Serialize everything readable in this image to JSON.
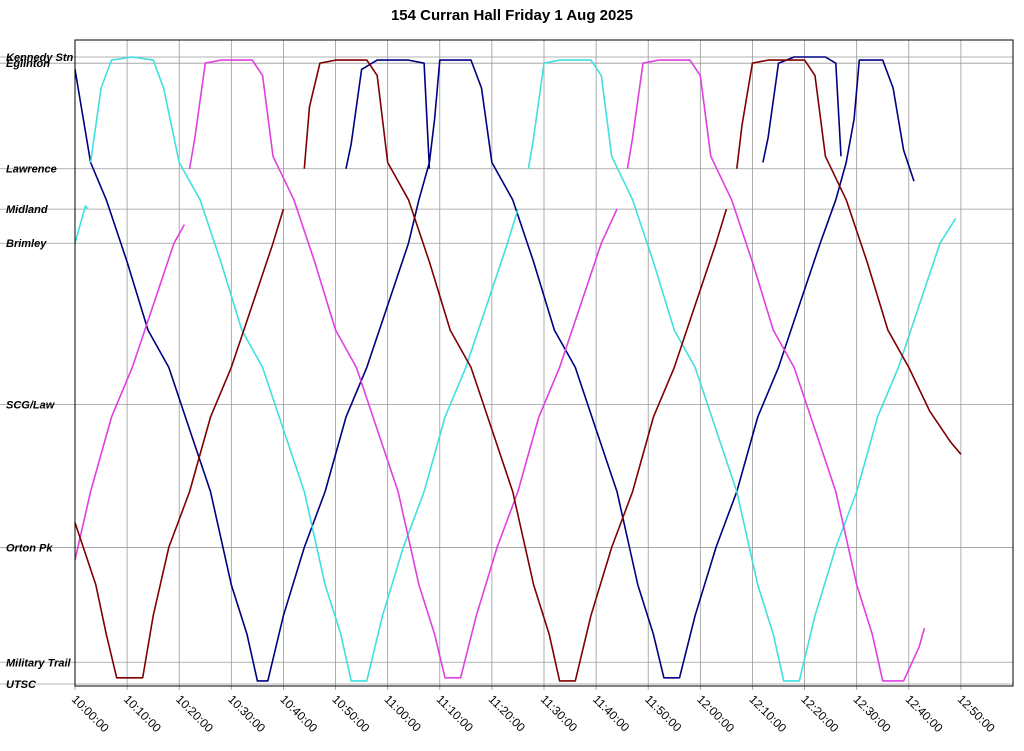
{
  "chart_data": {
    "type": "line",
    "title": "154 Curran Hall Friday 1 Aug 2025",
    "xlabel": "",
    "ylabel": "",
    "x_unit": "time",
    "xlim": [
      "10:00:00",
      "13:00:00"
    ],
    "x_ticks": [
      "10:00:00",
      "10:10:00",
      "10:20:00",
      "10:30:00",
      "10:40:00",
      "10:50:00",
      "11:00:00",
      "11:10:00",
      "11:20:00",
      "11:30:00",
      "11:40:00",
      "11:50:00",
      "12:00:00",
      "12:10:00",
      "12:20:00",
      "12:30:00",
      "12:40:00",
      "12:50:00"
    ],
    "y_stops": [
      {
        "name": "Kennedy Stn",
        "pos": 0.0
      },
      {
        "name": "Eglinton",
        "pos": 0.1
      },
      {
        "name": "Lawrence",
        "pos": 1.8
      },
      {
        "name": "Midland",
        "pos": 2.45
      },
      {
        "name": "Brimley",
        "pos": 3.0
      },
      {
        "name": "SCG/Law",
        "pos": 5.6
      },
      {
        "name": "Orton Pk",
        "pos": 7.9
      },
      {
        "name": "Military Trail",
        "pos": 9.75
      },
      {
        "name": "UTSC",
        "pos": 10.1
      }
    ],
    "ylim": [
      0,
      10.1
    ],
    "grid": true,
    "legend": "none",
    "series": [
      {
        "color": "#000080",
        "segments": [
          [
            [
              "10:00:00",
              0.2
            ],
            [
              "10:03:00",
              1.7
            ],
            [
              "10:06:00",
              2.3
            ],
            [
              "10:10:00",
              3.3
            ],
            [
              "10:14:00",
              4.4
            ],
            [
              "10:18:00",
              5.0
            ],
            [
              "10:22:00",
              6.0
            ],
            [
              "10:26:00",
              7.0
            ],
            [
              "10:30:00",
              8.5
            ],
            [
              "10:33:00",
              9.3
            ],
            [
              "10:35:00",
              10.05
            ],
            [
              "10:37:00",
              10.05
            ],
            [
              "10:40:00",
              9.0
            ],
            [
              "10:44:00",
              7.9
            ],
            [
              "10:48:00",
              7.0
            ],
            [
              "10:52:00",
              5.8
            ],
            [
              "10:56:00",
              5.0
            ],
            [
              "11:00:00",
              4.0
            ],
            [
              "11:04:00",
              3.0
            ],
            [
              "11:06:00",
              2.3
            ],
            [
              "11:08:00",
              1.7
            ],
            [
              "11:09:00",
              1.0
            ],
            [
              "11:10:00",
              0.05
            ],
            [
              "11:16:00",
              0.05
            ],
            [
              "11:18:00",
              0.5
            ],
            [
              "11:20:00",
              1.7
            ],
            [
              "11:24:00",
              2.3
            ],
            [
              "11:28:00",
              3.3
            ],
            [
              "11:32:00",
              4.4
            ],
            [
              "11:36:00",
              5.0
            ],
            [
              "11:40:00",
              6.0
            ],
            [
              "11:44:00",
              7.0
            ],
            [
              "11:48:00",
              8.5
            ],
            [
              "11:51:00",
              9.3
            ],
            [
              "11:53:00",
              10.0
            ],
            [
              "11:56:00",
              10.0
            ],
            [
              "11:59:00",
              9.0
            ],
            [
              "12:03:00",
              7.9
            ],
            [
              "12:07:00",
              7.0
            ],
            [
              "12:11:00",
              5.8
            ],
            [
              "12:15:00",
              5.0
            ],
            [
              "12:19:00",
              4.0
            ],
            [
              "12:23:00",
              3.0
            ],
            [
              "12:26:00",
              2.3
            ],
            [
              "12:28:00",
              1.7
            ],
            [
              "12:29:30",
              1.0
            ],
            [
              "12:30:30",
              0.05
            ],
            [
              "12:35:00",
              0.05
            ],
            [
              "12:37:00",
              0.5
            ],
            [
              "12:39:00",
              1.5
            ],
            [
              "12:41:00",
              2.0
            ]
          ],
          [
            [
              "10:52:00",
              1.8
            ],
            [
              "10:53:00",
              1.4
            ],
            [
              "10:55:00",
              0.2
            ],
            [
              "10:58:00",
              0.05
            ],
            [
              "11:04:00",
              0.05
            ],
            [
              "11:07:00",
              0.1
            ],
            [
              "11:08:00",
              1.8
            ]
          ],
          [
            [
              "12:12:00",
              1.7
            ],
            [
              "12:13:00",
              1.3
            ],
            [
              "12:15:00",
              0.1
            ],
            [
              "12:18:00",
              0.0
            ],
            [
              "12:24:00",
              0.0
            ],
            [
              "12:26:00",
              0.1
            ],
            [
              "12:27:00",
              1.6
            ]
          ]
        ]
      },
      {
        "color": "#40e0e0",
        "segments": [
          [
            [
              "10:00:00",
              3.0
            ],
            [
              "10:02:00",
              2.4
            ],
            [
              "10:02:30",
              2.45
            ]
          ],
          [
            [
              "10:03:00",
              1.7
            ],
            [
              "10:05:00",
              0.5
            ],
            [
              "10:07:00",
              0.05
            ],
            [
              "10:11:00",
              0.0
            ],
            [
              "10:15:00",
              0.05
            ],
            [
              "10:17:00",
              0.5
            ],
            [
              "10:20:00",
              1.7
            ],
            [
              "10:24:00",
              2.3
            ],
            [
              "10:28:00",
              3.3
            ],
            [
              "10:32:00",
              4.4
            ],
            [
              "10:36:00",
              5.0
            ],
            [
              "10:40:00",
              6.0
            ],
            [
              "10:44:00",
              7.0
            ],
            [
              "10:48:00",
              8.5
            ],
            [
              "10:51:00",
              9.3
            ],
            [
              "10:53:00",
              10.05
            ],
            [
              "10:56:00",
              10.05
            ],
            [
              "10:59:00",
              9.0
            ],
            [
              "11:03:00",
              7.9
            ],
            [
              "11:07:00",
              7.0
            ],
            [
              "11:11:00",
              5.8
            ],
            [
              "11:15:00",
              5.0
            ],
            [
              "11:19:00",
              4.0
            ],
            [
              "11:23:00",
              3.0
            ],
            [
              "11:25:00",
              2.45
            ]
          ],
          [
            [
              "11:27:00",
              1.8
            ],
            [
              "11:28:00",
              1.3
            ],
            [
              "11:30:00",
              0.1
            ],
            [
              "11:33:00",
              0.05
            ],
            [
              "11:39:00",
              0.05
            ],
            [
              "11:41:00",
              0.3
            ],
            [
              "11:43:00",
              1.6
            ],
            [
              "11:47:00",
              2.3
            ],
            [
              "11:51:00",
              3.3
            ],
            [
              "11:55:00",
              4.4
            ],
            [
              "11:59:00",
              5.0
            ],
            [
              "12:03:00",
              6.0
            ],
            [
              "12:07:00",
              7.0
            ],
            [
              "12:11:00",
              8.5
            ],
            [
              "12:14:00",
              9.3
            ],
            [
              "12:16:00",
              10.05
            ],
            [
              "12:19:00",
              10.05
            ],
            [
              "12:22:00",
              9.0
            ],
            [
              "12:26:00",
              7.9
            ],
            [
              "12:30:00",
              7.0
            ],
            [
              "12:34:00",
              5.8
            ],
            [
              "12:38:00",
              5.0
            ],
            [
              "12:42:00",
              4.0
            ],
            [
              "12:46:00",
              3.0
            ],
            [
              "12:49:00",
              2.6
            ]
          ]
        ]
      },
      {
        "color": "#e040e0",
        "segments": [
          [
            [
              "10:00:00",
              8.1
            ],
            [
              "10:03:00",
              7.0
            ],
            [
              "10:07:00",
              5.8
            ],
            [
              "10:11:00",
              5.0
            ],
            [
              "10:15:00",
              4.0
            ],
            [
              "10:19:00",
              3.0
            ],
            [
              "10:21:00",
              2.7
            ]
          ],
          [
            [
              "10:22:00",
              1.8
            ],
            [
              "10:23:00",
              1.3
            ],
            [
              "10:25:00",
              0.1
            ],
            [
              "10:28:00",
              0.05
            ],
            [
              "10:34:00",
              0.05
            ],
            [
              "10:36:00",
              0.3
            ],
            [
              "10:38:00",
              1.6
            ],
            [
              "10:42:00",
              2.3
            ],
            [
              "10:46:00",
              3.3
            ],
            [
              "10:50:00",
              4.4
            ],
            [
              "10:54:00",
              5.0
            ],
            [
              "10:58:00",
              6.0
            ],
            [
              "11:02:00",
              7.0
            ],
            [
              "11:06:00",
              8.5
            ],
            [
              "11:09:00",
              9.3
            ],
            [
              "11:11:00",
              10.0
            ],
            [
              "11:14:00",
              10.0
            ],
            [
              "11:17:00",
              9.0
            ],
            [
              "11:21:00",
              7.9
            ],
            [
              "11:25:00",
              7.0
            ],
            [
              "11:29:00",
              5.8
            ],
            [
              "11:33:00",
              5.0
            ],
            [
              "11:37:00",
              4.0
            ],
            [
              "11:41:00",
              3.0
            ],
            [
              "11:44:00",
              2.45
            ]
          ],
          [
            [
              "11:46:00",
              1.8
            ],
            [
              "11:47:00",
              1.3
            ],
            [
              "11:49:00",
              0.1
            ],
            [
              "11:52:00",
              0.05
            ],
            [
              "11:58:00",
              0.05
            ],
            [
              "12:00:00",
              0.3
            ],
            [
              "12:02:00",
              1.6
            ],
            [
              "12:06:00",
              2.3
            ],
            [
              "12:10:00",
              3.3
            ],
            [
              "12:14:00",
              4.4
            ],
            [
              "12:18:00",
              5.0
            ],
            [
              "12:22:00",
              6.0
            ],
            [
              "12:26:00",
              7.0
            ],
            [
              "12:30:00",
              8.5
            ],
            [
              "12:33:00",
              9.3
            ],
            [
              "12:35:00",
              10.05
            ],
            [
              "12:39:00",
              10.05
            ],
            [
              "12:42:00",
              9.5
            ],
            [
              "12:43:00",
              9.2
            ]
          ]
        ]
      },
      {
        "color": "#800000",
        "segments": [
          [
            [
              "10:00:00",
              7.5
            ],
            [
              "10:02:00",
              8.0
            ],
            [
              "10:04:00",
              8.5
            ],
            [
              "10:06:00",
              9.3
            ],
            [
              "10:08:00",
              10.0
            ],
            [
              "10:13:00",
              10.0
            ],
            [
              "10:15:00",
              9.0
            ],
            [
              "10:18:00",
              7.9
            ],
            [
              "10:22:00",
              7.0
            ],
            [
              "10:26:00",
              5.8
            ],
            [
              "10:30:00",
              5.0
            ],
            [
              "10:34:00",
              4.0
            ],
            [
              "10:38:00",
              3.0
            ],
            [
              "10:40:00",
              2.45
            ]
          ],
          [
            [
              "10:44:00",
              1.8
            ],
            [
              "10:45:00",
              0.8
            ],
            [
              "10:47:00",
              0.1
            ],
            [
              "10:50:00",
              0.05
            ],
            [
              "10:56:00",
              0.05
            ],
            [
              "10:58:00",
              0.3
            ],
            [
              "11:00:00",
              1.7
            ],
            [
              "11:04:00",
              2.3
            ],
            [
              "11:08:00",
              3.3
            ],
            [
              "11:12:00",
              4.4
            ],
            [
              "11:16:00",
              5.0
            ],
            [
              "11:20:00",
              6.0
            ],
            [
              "11:24:00",
              7.0
            ],
            [
              "11:28:00",
              8.5
            ],
            [
              "11:31:00",
              9.3
            ],
            [
              "11:33:00",
              10.05
            ],
            [
              "11:36:00",
              10.05
            ],
            [
              "11:39:00",
              9.0
            ],
            [
              "11:43:00",
              7.9
            ],
            [
              "11:47:00",
              7.0
            ],
            [
              "11:51:00",
              5.8
            ],
            [
              "11:55:00",
              5.0
            ],
            [
              "11:59:00",
              4.0
            ],
            [
              "12:03:00",
              3.0
            ],
            [
              "12:05:00",
              2.45
            ]
          ],
          [
            [
              "12:07:00",
              1.8
            ],
            [
              "12:08:00",
              1.1
            ],
            [
              "12:10:00",
              0.1
            ],
            [
              "12:13:00",
              0.05
            ],
            [
              "12:20:00",
              0.05
            ],
            [
              "12:22:00",
              0.3
            ],
            [
              "12:24:00",
              1.6
            ],
            [
              "12:28:00",
              2.3
            ],
            [
              "12:32:00",
              3.3
            ],
            [
              "12:36:00",
              4.4
            ],
            [
              "12:40:00",
              5.0
            ],
            [
              "12:44:00",
              5.7
            ],
            [
              "12:48:00",
              6.2
            ],
            [
              "12:50:00",
              6.4
            ]
          ]
        ]
      }
    ]
  }
}
